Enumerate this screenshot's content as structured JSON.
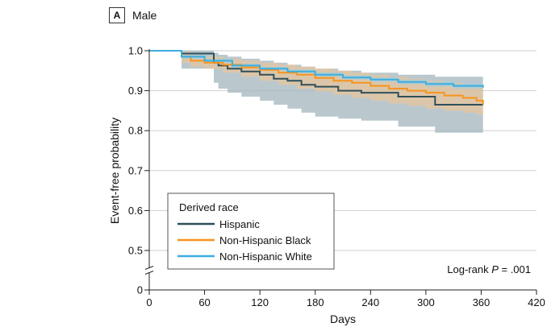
{
  "panel": {
    "letter": "A",
    "title": "Male"
  },
  "colors": {
    "hispanic_line": "#2f4f5a",
    "black_line": "#f7941d",
    "white_line": "#3aaee0",
    "hispanic_band": "#a3b5be",
    "black_band": "#f7c48a",
    "white_band": "#8fd0ee",
    "grid": "#cfcfcf"
  },
  "chart_data": {
    "type": "line",
    "step": true,
    "xlabel": "Days",
    "ylabel": "Event-free probability",
    "xlim": [
      0,
      420
    ],
    "ylim": [
      0,
      1.0
    ],
    "x_ticks": [
      0,
      60,
      120,
      180,
      240,
      300,
      360,
      420
    ],
    "y_ticks": [
      0,
      0.5,
      0.6,
      0.7,
      0.8,
      0.9,
      1.0
    ],
    "y_tick_labels": [
      "0",
      "0.5",
      "0.6",
      "0.7",
      "0.8",
      "0.9",
      "1.0"
    ],
    "y_axis_break": true,
    "grid": "horizontal",
    "legend": {
      "title": "Derived race",
      "placement": "bottom-left",
      "entries": [
        "Hispanic",
        "Non-Hispanic Black",
        "Non-Hispanic White"
      ]
    },
    "annotation": {
      "prefix": "Log-rank ",
      "italic": "P",
      "suffix": " = .001"
    },
    "series": [
      {
        "name": "Hispanic",
        "x": [
          0,
          35,
          70,
          75,
          85,
          100,
          120,
          135,
          150,
          165,
          180,
          205,
          230,
          270,
          310,
          362
        ],
        "y": [
          1.0,
          0.993,
          0.97,
          0.963,
          0.955,
          0.948,
          0.94,
          0.93,
          0.925,
          0.915,
          0.91,
          0.9,
          0.895,
          0.885,
          0.865,
          0.865
        ],
        "lower": [
          1.0,
          0.955,
          0.92,
          0.905,
          0.895,
          0.885,
          0.875,
          0.865,
          0.855,
          0.845,
          0.835,
          0.83,
          0.825,
          0.81,
          0.795,
          0.795
        ],
        "upper": [
          1.0,
          1.0,
          0.995,
          0.99,
          0.985,
          0.98,
          0.975,
          0.97,
          0.965,
          0.96,
          0.955,
          0.95,
          0.945,
          0.94,
          0.935,
          0.93
        ]
      },
      {
        "name": "Non-Hispanic Black",
        "x": [
          0,
          35,
          45,
          60,
          80,
          100,
          120,
          140,
          160,
          180,
          200,
          220,
          240,
          260,
          280,
          300,
          320,
          340,
          355,
          362
        ],
        "y": [
          1.0,
          0.985,
          0.975,
          0.97,
          0.965,
          0.958,
          0.952,
          0.945,
          0.94,
          0.932,
          0.925,
          0.92,
          0.912,
          0.905,
          0.9,
          0.895,
          0.888,
          0.882,
          0.875,
          0.865
        ],
        "lower": [
          1.0,
          0.97,
          0.96,
          0.955,
          0.945,
          0.935,
          0.925,
          0.915,
          0.905,
          0.898,
          0.89,
          0.882,
          0.875,
          0.868,
          0.862,
          0.855,
          0.85,
          0.845,
          0.84,
          0.835
        ],
        "upper": [
          1.0,
          0.997,
          0.99,
          0.985,
          0.98,
          0.975,
          0.97,
          0.965,
          0.96,
          0.955,
          0.95,
          0.945,
          0.94,
          0.935,
          0.93,
          0.925,
          0.92,
          0.915,
          0.91,
          0.9
        ]
      },
      {
        "name": "Non-Hispanic White",
        "x": [
          0,
          35,
          60,
          90,
          120,
          150,
          180,
          210,
          240,
          270,
          300,
          330,
          362
        ],
        "y": [
          1.0,
          0.985,
          0.975,
          0.963,
          0.955,
          0.948,
          0.94,
          0.933,
          0.928,
          0.922,
          0.917,
          0.912,
          0.908
        ],
        "lower": [
          1.0,
          0.98,
          0.97,
          0.958,
          0.95,
          0.943,
          0.935,
          0.928,
          0.922,
          0.916,
          0.91,
          0.905,
          0.9
        ],
        "upper": [
          1.0,
          0.99,
          0.98,
          0.968,
          0.96,
          0.953,
          0.946,
          0.939,
          0.934,
          0.928,
          0.923,
          0.918,
          0.915
        ]
      }
    ]
  }
}
